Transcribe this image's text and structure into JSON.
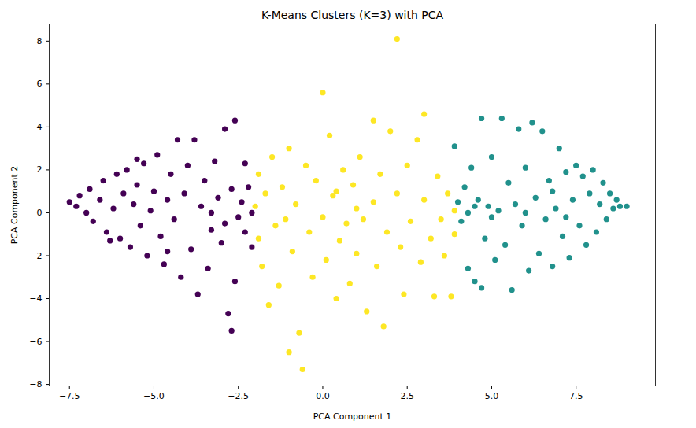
{
  "chart_data": {
    "type": "scatter",
    "title": "K-Means Clusters (K=3) with PCA",
    "x_label": "PCA Component 1",
    "y_label": "PCA Component 2",
    "xlim": [
      -8.1,
      9.85
    ],
    "ylim": [
      -8.07,
      8.8
    ],
    "xticks": [
      {
        "value": -7.5,
        "label": "−7.5"
      },
      {
        "value": -5,
        "label": "−5.0"
      },
      {
        "value": -2.5,
        "label": "−2.5"
      },
      {
        "value": 0,
        "label": "0.0"
      },
      {
        "value": 2.5,
        "label": "2.5"
      },
      {
        "value": 5,
        "label": "5.0"
      },
      {
        "value": 7.5,
        "label": "7.5"
      }
    ],
    "yticks": [
      {
        "value": -8,
        "label": "−8"
      },
      {
        "value": -6,
        "label": "−6"
      },
      {
        "value": -4,
        "label": "−4"
      },
      {
        "value": -2,
        "label": "−2"
      },
      0,
      2,
      4,
      6,
      8
    ],
    "grid": false,
    "marker": "circle",
    "series": [
      {
        "color": "#440154",
        "x": [
          -7.5,
          -7.3,
          -7.2,
          -7.0,
          -6.9,
          -6.8,
          -6.6,
          -6.5,
          -6.4,
          -6.2,
          -6.1,
          -6.0,
          -5.9,
          -5.8,
          -5.7,
          -5.6,
          -5.5,
          -5.4,
          -5.3,
          -5.2,
          -5.1,
          -5.0,
          -4.9,
          -4.8,
          -4.7,
          -4.6,
          -4.5,
          -4.4,
          -4.3,
          -4.2,
          -4.1,
          -4.0,
          -3.9,
          -3.8,
          -3.7,
          -3.6,
          -3.5,
          -3.4,
          -3.3,
          -3.2,
          -3.1,
          -3.0,
          -2.9,
          -2.8,
          -2.7,
          -2.7,
          -2.6,
          -2.5,
          -2.4,
          -2.3,
          -2.2,
          -2.1,
          -2.1,
          -2.3,
          -2.6,
          -3.3,
          -2.9,
          -4.6,
          -5.5,
          -6.3
        ],
        "y": [
          0.5,
          0.3,
          0.8,
          0.0,
          1.1,
          -0.4,
          0.6,
          1.5,
          -0.9,
          0.2,
          1.8,
          -1.2,
          0.9,
          2.0,
          -1.6,
          0.4,
          1.3,
          -0.6,
          2.3,
          -2.0,
          0.1,
          1.0,
          2.7,
          -1.1,
          -2.4,
          0.6,
          1.8,
          -0.3,
          3.4,
          -3.0,
          0.9,
          2.2,
          -1.7,
          3.4,
          -3.8,
          0.3,
          1.5,
          -2.6,
          -0.8,
          2.4,
          0.7,
          -1.4,
          3.9,
          -4.7,
          1.1,
          -5.5,
          4.3,
          -0.2,
          0.5,
          -0.9,
          1.2,
          0.0,
          -1.6,
          2.3,
          -3.2,
          0.0,
          -0.5,
          -1.8,
          2.5,
          -1.3
        ]
      },
      {
        "color": "#fde725",
        "x": [
          -2.0,
          -1.9,
          -1.9,
          -1.8,
          -1.7,
          -1.6,
          -1.5,
          -1.4,
          -1.3,
          -1.2,
          -1.0,
          -1.0,
          -0.9,
          -0.8,
          -0.7,
          -0.6,
          -0.5,
          -0.4,
          -0.3,
          -0.2,
          0.0,
          0.0,
          0.1,
          0.2,
          0.3,
          0.4,
          0.5,
          0.6,
          0.7,
          0.8,
          0.9,
          1.0,
          1.1,
          1.2,
          1.3,
          1.5,
          1.5,
          1.6,
          1.7,
          1.8,
          1.9,
          2.0,
          2.2,
          2.2,
          2.3,
          2.4,
          2.5,
          2.6,
          2.8,
          2.9,
          3.0,
          3.0,
          3.2,
          3.3,
          3.4,
          3.5,
          3.6,
          3.7,
          3.8,
          3.9,
          3.9,
          1.0,
          -1.1,
          0.4
        ],
        "y": [
          0.3,
          -1.2,
          1.8,
          -2.5,
          0.9,
          -4.3,
          2.6,
          -0.6,
          -3.4,
          1.2,
          -6.5,
          3.0,
          -1.8,
          0.4,
          -5.6,
          -7.3,
          2.2,
          -0.9,
          -3.0,
          1.5,
          5.6,
          -0.2,
          -2.2,
          3.6,
          0.8,
          -4.0,
          -1.3,
          2.0,
          -0.5,
          -3.3,
          1.3,
          -1.9,
          2.6,
          -0.3,
          -4.6,
          4.3,
          0.5,
          -2.5,
          1.8,
          -5.3,
          -0.9,
          3.8,
          8.1,
          0.9,
          -1.6,
          -3.8,
          2.2,
          -0.4,
          3.4,
          -2.3,
          4.6,
          0.6,
          -1.2,
          -3.9,
          1.7,
          -0.3,
          -2.0,
          0.9,
          -3.9,
          0.1,
          -1.0,
          0.2,
          -0.3,
          1.0
        ]
      },
      {
        "color": "#21918c",
        "x": [
          3.9,
          4.0,
          4.1,
          4.2,
          4.3,
          4.3,
          4.4,
          4.5,
          4.6,
          4.7,
          4.7,
          4.8,
          4.9,
          5.0,
          5.1,
          5.2,
          5.3,
          5.4,
          5.5,
          5.6,
          5.7,
          5.8,
          5.9,
          6.0,
          6.1,
          6.2,
          6.3,
          6.4,
          6.5,
          6.6,
          6.7,
          6.8,
          6.9,
          7.0,
          7.1,
          7.2,
          7.3,
          7.4,
          7.5,
          7.6,
          7.7,
          7.8,
          7.9,
          8.0,
          8.1,
          8.2,
          8.3,
          8.4,
          8.5,
          8.6,
          8.7,
          8.8,
          9.0,
          6.0,
          5.0,
          4.5,
          7.2,
          6.8
        ],
        "y": [
          3.1,
          0.5,
          -0.4,
          1.2,
          0.0,
          -2.6,
          2.1,
          -3.2,
          0.6,
          -3.5,
          4.4,
          -1.2,
          0.3,
          2.6,
          -2.2,
          0.1,
          4.4,
          -1.5,
          1.4,
          -3.6,
          0.4,
          3.9,
          -0.6,
          2.1,
          -2.7,
          4.2,
          0.7,
          -1.9,
          3.8,
          -0.3,
          1.5,
          -2.5,
          0.2,
          3.0,
          -1.1,
          1.9,
          -2.1,
          0.6,
          2.2,
          -0.6,
          1.7,
          -1.5,
          0.9,
          2.0,
          -0.9,
          0.4,
          1.4,
          -0.3,
          0.9,
          0.2,
          0.6,
          0.3,
          0.3,
          0.0,
          -0.2,
          0.3,
          -0.2,
          1.0
        ]
      }
    ]
  }
}
